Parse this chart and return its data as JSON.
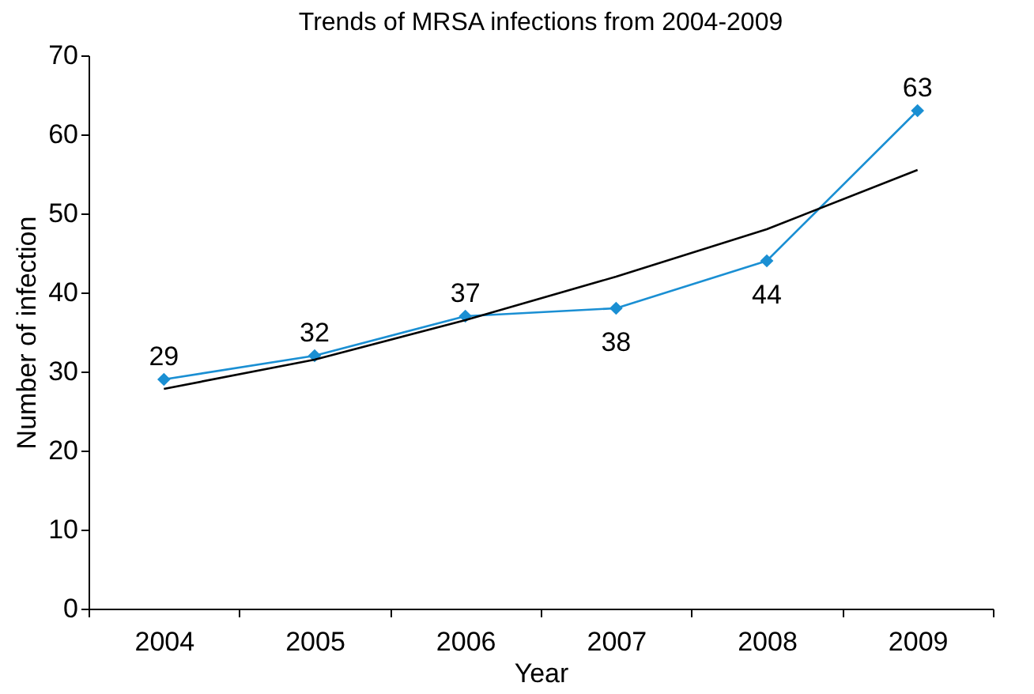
{
  "chart_data": {
    "type": "line",
    "title": "Trends of MRSA infections from 2004-2009",
    "xlabel": "Year",
    "ylabel": "Number of infection",
    "categories": [
      "2004",
      "2005",
      "2006",
      "2007",
      "2008",
      "2009"
    ],
    "series": [
      {
        "color": "#1a8fd3",
        "values": [
          29,
          32,
          37,
          38,
          44,
          63
        ],
        "marker": "diamond",
        "value_labels": [
          "29",
          "32",
          "37",
          "38",
          "44",
          "63"
        ]
      },
      {
        "color": "#000000",
        "values": [
          27.8,
          31.5,
          36.5,
          42,
          48,
          55.5
        ],
        "marker": "none"
      }
    ],
    "ylim": [
      0,
      70
    ],
    "yticks": [
      0,
      10,
      20,
      30,
      40,
      50,
      60,
      70
    ],
    "grid": false
  }
}
